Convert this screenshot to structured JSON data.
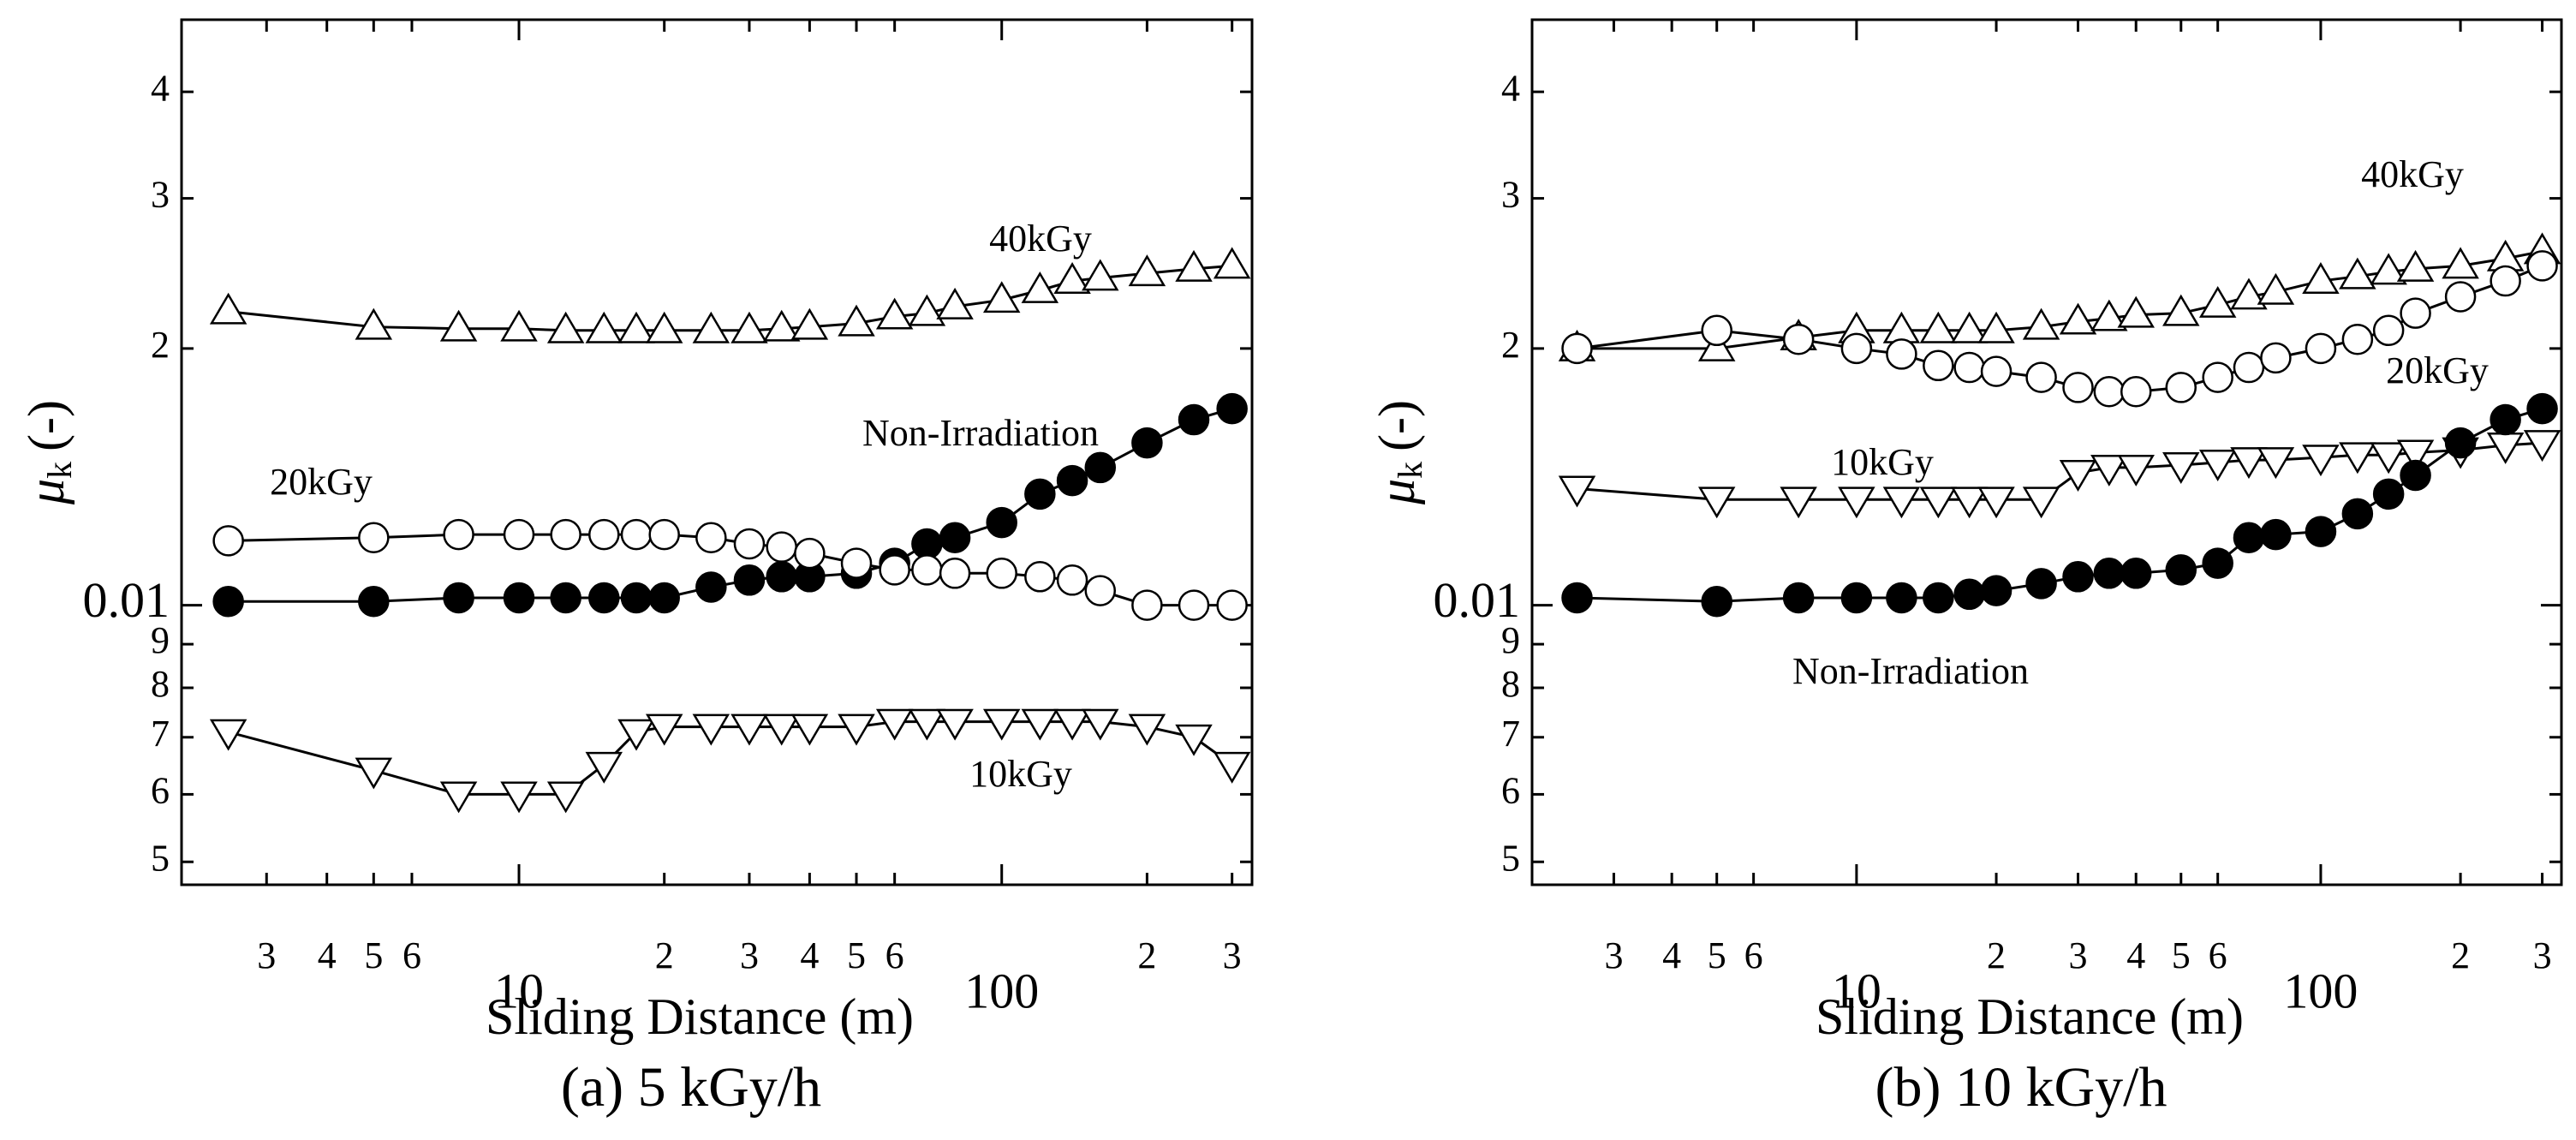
{
  "chart_data": [
    {
      "type": "line",
      "caption": "(a) 5 kGy/h",
      "x_label": "Sliding Distance (m)",
      "y_label_symbol": "μ",
      "y_label_subscript": "k",
      "y_label_unit": "(-)",
      "x_scale": "log",
      "y_scale": "log",
      "xlim": [
        2,
        330
      ],
      "ylim": [
        0.0047,
        0.0486
      ],
      "xticks": [
        3,
        4,
        5,
        6,
        10,
        {
          "value": 20,
          "label": "2"
        },
        {
          "value": 30,
          "label": "3"
        },
        {
          "value": 40,
          "label": "4"
        },
        {
          "value": 50,
          "label": "5"
        },
        {
          "value": 60,
          "label": "6"
        },
        100,
        {
          "value": 200,
          "label": "2"
        },
        {
          "value": 300,
          "label": "3"
        }
      ],
      "yticks": [
        {
          "value": 0.005,
          "label": "5"
        },
        {
          "value": 0.006,
          "label": "6"
        },
        {
          "value": 0.007,
          "label": "7"
        },
        {
          "value": 0.008,
          "label": "8"
        },
        {
          "value": 0.009,
          "label": "9"
        },
        0.01,
        {
          "value": 0.02,
          "label": "2"
        },
        {
          "value": 0.03,
          "label": "3"
        },
        {
          "value": 0.04,
          "label": "4"
        }
      ],
      "x": [
        2.5,
        5,
        7.5,
        10,
        12.5,
        15,
        17.5,
        20,
        25,
        30,
        35,
        40,
        50,
        60,
        70,
        80,
        100,
        120,
        140,
        160,
        200,
        250,
        300
      ],
      "annotations": [
        "40kGy",
        "Non-Irradiation",
        "20kGy",
        "10kGy"
      ],
      "series": [
        {
          "marker": "triangle-up",
          "filled": false,
          "color": "#000000",
          "values": [
            0.0221,
            0.0212,
            0.0211,
            0.0211,
            0.021,
            0.021,
            0.021,
            0.021,
            0.021,
            0.021,
            0.0211,
            0.0212,
            0.0214,
            0.0218,
            0.022,
            0.0224,
            0.0228,
            0.0234,
            0.024,
            0.0242,
            0.0245,
            0.0248,
            0.025
          ]
        },
        {
          "marker": "circle",
          "filled": true,
          "color": "#000000",
          "values": [
            0.0101,
            0.0101,
            0.0102,
            0.0102,
            0.0102,
            0.0102,
            0.0102,
            0.0102,
            0.0105,
            0.0107,
            0.0108,
            0.0108,
            0.0109,
            0.0112,
            0.0118,
            0.012,
            0.0125,
            0.0135,
            0.014,
            0.0145,
            0.0155,
            0.0165,
            0.017
          ]
        },
        {
          "marker": "circle",
          "filled": false,
          "color": "#000000",
          "values": [
            0.0119,
            0.012,
            0.0121,
            0.0121,
            0.0121,
            0.0121,
            0.0121,
            0.0121,
            0.012,
            0.0118,
            0.0117,
            0.0115,
            0.0112,
            0.011,
            0.011,
            0.0109,
            0.0109,
            0.0108,
            0.0107,
            0.0104,
            0.01,
            0.01,
            0.01
          ]
        },
        {
          "marker": "triangle-down",
          "filled": false,
          "color": "#000000",
          "values": [
            0.0071,
            0.0064,
            0.006,
            0.006,
            0.006,
            0.0065,
            0.0071,
            0.0072,
            0.0072,
            0.0072,
            0.0072,
            0.0072,
            0.0072,
            0.0073,
            0.0073,
            0.0073,
            0.0073,
            0.0073,
            0.0073,
            0.0073,
            0.0072,
            0.007,
            0.0065
          ]
        }
      ]
    },
    {
      "type": "line",
      "caption": "(b) 10 kGy/h",
      "x_label": "Sliding Distance (m)",
      "y_label_symbol": "μ",
      "y_label_subscript": "k",
      "y_label_unit": "(-)",
      "x_scale": "log",
      "y_scale": "log",
      "xlim": [
        2,
        330
      ],
      "ylim": [
        0.0047,
        0.0486
      ],
      "xticks": [
        3,
        4,
        5,
        6,
        10,
        {
          "value": 20,
          "label": "2"
        },
        {
          "value": 30,
          "label": "3"
        },
        {
          "value": 40,
          "label": "4"
        },
        {
          "value": 50,
          "label": "5"
        },
        {
          "value": 60,
          "label": "6"
        },
        100,
        {
          "value": 200,
          "label": "2"
        },
        {
          "value": 300,
          "label": "3"
        }
      ],
      "yticks": [
        {
          "value": 0.005,
          "label": "5"
        },
        {
          "value": 0.006,
          "label": "6"
        },
        {
          "value": 0.007,
          "label": "7"
        },
        {
          "value": 0.008,
          "label": "8"
        },
        {
          "value": 0.009,
          "label": "9"
        },
        0.01,
        {
          "value": 0.02,
          "label": "2"
        },
        {
          "value": 0.03,
          "label": "3"
        },
        {
          "value": 0.04,
          "label": "4"
        }
      ],
      "x": [
        2.5,
        5,
        7.5,
        10,
        12.5,
        15,
        17.5,
        20,
        25,
        30,
        35,
        40,
        50,
        60,
        70,
        80,
        100,
        120,
        140,
        160,
        200,
        250,
        300
      ],
      "annotations": [
        "40kGy",
        "20kGy",
        "10kGy",
        "Non-Irradiation"
      ],
      "series": [
        {
          "marker": "triangle-up",
          "filled": false,
          "color": "#000000",
          "values": [
            0.02,
            0.02,
            0.0206,
            0.021,
            0.021,
            0.021,
            0.021,
            0.021,
            0.0212,
            0.0215,
            0.0217,
            0.0219,
            0.022,
            0.0225,
            0.023,
            0.0233,
            0.024,
            0.0243,
            0.0246,
            0.0248,
            0.025,
            0.0255,
            0.026
          ]
        },
        {
          "marker": "circle",
          "filled": false,
          "color": "#000000",
          "values": [
            0.02,
            0.021,
            0.0205,
            0.02,
            0.0197,
            0.0191,
            0.019,
            0.0188,
            0.0185,
            0.018,
            0.0178,
            0.0178,
            0.018,
            0.0185,
            0.019,
            0.0195,
            0.02,
            0.0205,
            0.021,
            0.022,
            0.023,
            0.024,
            0.025
          ]
        },
        {
          "marker": "triangle-down",
          "filled": false,
          "color": "#000000",
          "values": [
            0.0137,
            0.0133,
            0.0133,
            0.0133,
            0.0133,
            0.0133,
            0.0133,
            0.0133,
            0.0133,
            0.0143,
            0.0145,
            0.0145,
            0.0146,
            0.0147,
            0.0148,
            0.0148,
            0.0149,
            0.015,
            0.015,
            0.0151,
            0.0152,
            0.0154,
            0.0155
          ]
        },
        {
          "marker": "circle",
          "filled": true,
          "color": "#000000",
          "values": [
            0.0102,
            0.0101,
            0.0102,
            0.0102,
            0.0102,
            0.0102,
            0.0103,
            0.0104,
            0.0106,
            0.0108,
            0.0109,
            0.0109,
            0.011,
            0.0112,
            0.012,
            0.0121,
            0.0122,
            0.0128,
            0.0135,
            0.0142,
            0.0155,
            0.0165,
            0.017
          ]
        }
      ]
    }
  ]
}
